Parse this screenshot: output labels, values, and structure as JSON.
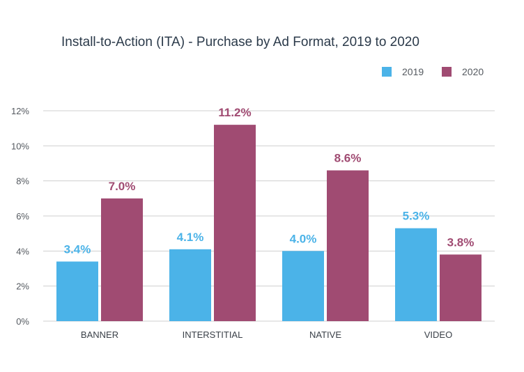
{
  "chart_data": {
    "type": "bar",
    "title": "Install-to-Action (ITA) - Purchase by Ad Format, 2019 to 2020",
    "xlabel": "",
    "ylabel": "",
    "categories": [
      "BANNER",
      "INTERSTITIAL",
      "NATIVE",
      "VIDEO"
    ],
    "series": [
      {
        "name": "2019",
        "color": "#4bb3e8",
        "values": [
          3.4,
          4.1,
          4.0,
          5.3
        ],
        "labels": [
          "3.4%",
          "4.1%",
          "4.0%",
          "5.3%"
        ]
      },
      {
        "name": "2020",
        "color": "#a04b72",
        "values": [
          7.0,
          11.2,
          8.6,
          3.8
        ],
        "labels": [
          "7.0%",
          "11.2%",
          "8.6%",
          "3.8%"
        ]
      }
    ],
    "ylim": [
      0,
      12
    ],
    "yticks": [
      0,
      2,
      4,
      6,
      8,
      10,
      12
    ],
    "ytick_labels": [
      "0%",
      "2%",
      "4%",
      "6%",
      "8%",
      "10%",
      "12%"
    ],
    "grid": true,
    "legend_position": "top-right"
  }
}
